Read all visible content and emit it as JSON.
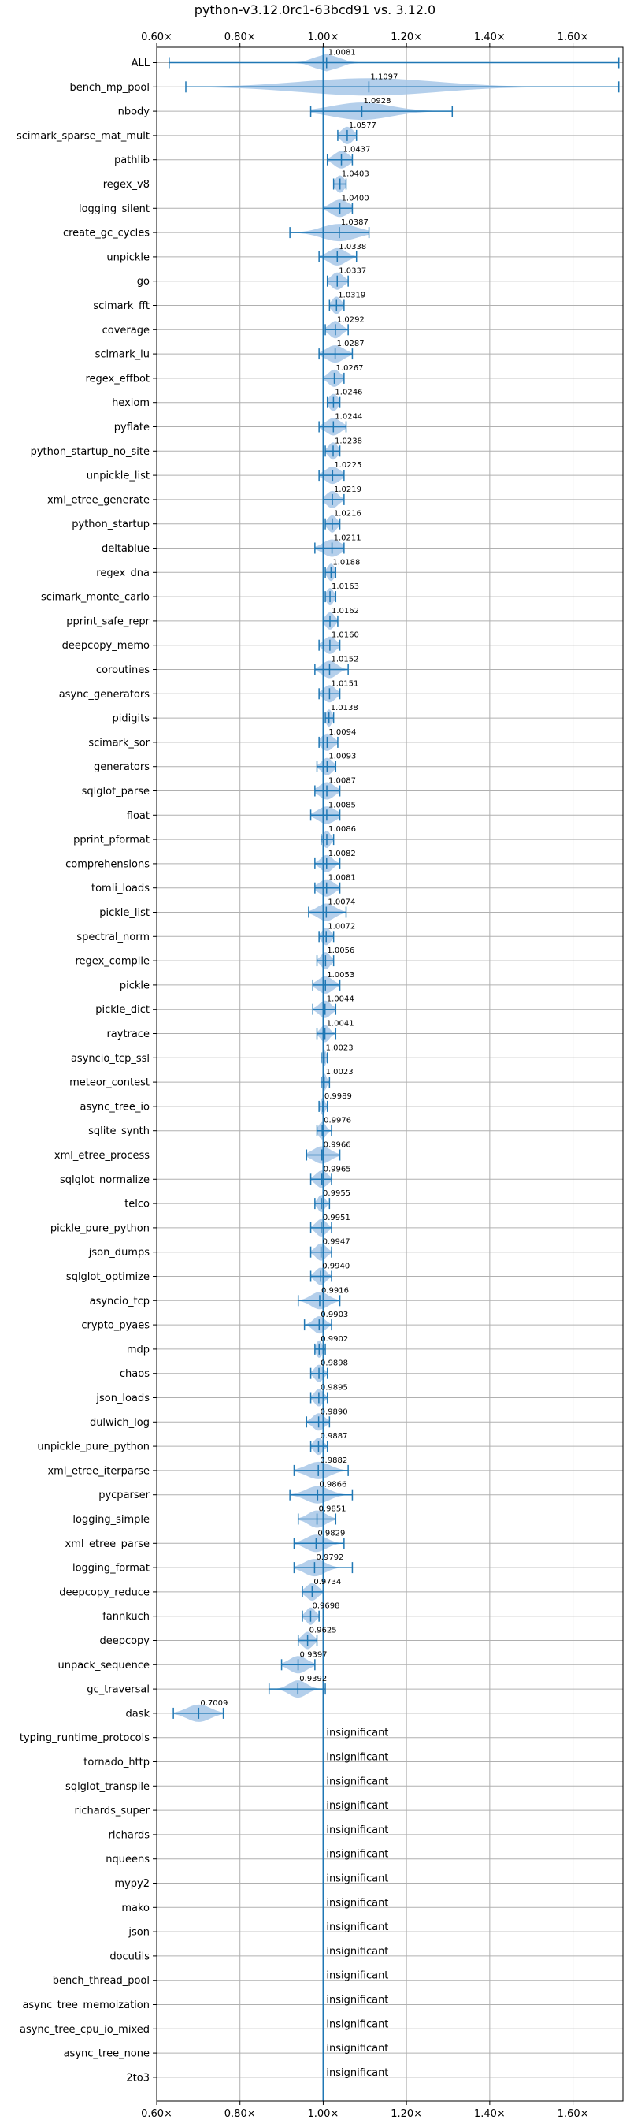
{
  "chart_data": {
    "type": "violin",
    "orientation": "horizontal",
    "title": "python-v3.12.0rc1-63bcd91 vs. 3.12.0",
    "xlim": [
      0.6,
      1.72
    ],
    "x_ticks": [
      0.6,
      0.8,
      1.0,
      1.2,
      1.4,
      1.6
    ],
    "x_tick_labels": [
      "0.60×",
      "0.80×",
      "1.00×",
      "1.20×",
      "1.40×",
      "1.60×"
    ],
    "reference_line": 1.0,
    "grid": true,
    "colors": {
      "violin": "#a7c7e7",
      "line": "#1f77b4",
      "grid": "#b0b0b0"
    },
    "insignificant_label": "insignificant",
    "benchmarks": [
      {
        "name": "ALL",
        "value": 1.0081,
        "label": "1.0081",
        "min": 0.63,
        "max": 1.71,
        "spread": 0.04
      },
      {
        "name": "bench_mp_pool",
        "value": 1.1097,
        "label": "1.1097",
        "min": 0.67,
        "max": 1.71,
        "spread": 0.23
      },
      {
        "name": "nbody",
        "value": 1.0928,
        "label": "1.0928",
        "min": 0.97,
        "max": 1.31,
        "spread": 0.1
      },
      {
        "name": "scimark_sparse_mat_mult",
        "value": 1.0577,
        "label": "1.0577",
        "min": 1.035,
        "max": 1.08,
        "spread": 0.02
      },
      {
        "name": "pathlib",
        "value": 1.0437,
        "label": "1.0437",
        "min": 1.01,
        "max": 1.07,
        "spread": 0.025
      },
      {
        "name": "regex_v8",
        "value": 1.0403,
        "label": "1.0403",
        "min": 1.025,
        "max": 1.055,
        "spread": 0.015
      },
      {
        "name": "logging_silent",
        "value": 1.04,
        "label": "1.0400",
        "min": 1.0,
        "max": 1.07,
        "spread": 0.03
      },
      {
        "name": "create_gc_cycles",
        "value": 1.0387,
        "label": "1.0387",
        "min": 0.92,
        "max": 1.11,
        "spread": 0.06
      },
      {
        "name": "unpickle",
        "value": 1.0338,
        "label": "1.0338",
        "min": 0.99,
        "max": 1.08,
        "spread": 0.03
      },
      {
        "name": "go",
        "value": 1.0337,
        "label": "1.0337",
        "min": 1.01,
        "max": 1.06,
        "spread": 0.02
      },
      {
        "name": "scimark_fft",
        "value": 1.0319,
        "label": "1.0319",
        "min": 1.015,
        "max": 1.05,
        "spread": 0.015
      },
      {
        "name": "coverage",
        "value": 1.0292,
        "label": "1.0292",
        "min": 1.005,
        "max": 1.06,
        "spread": 0.02
      },
      {
        "name": "scimark_lu",
        "value": 1.0287,
        "label": "1.0287",
        "min": 0.99,
        "max": 1.07,
        "spread": 0.03
      },
      {
        "name": "regex_effbot",
        "value": 1.0267,
        "label": "1.0267",
        "min": 1.0,
        "max": 1.05,
        "spread": 0.02
      },
      {
        "name": "hexiom",
        "value": 1.0246,
        "label": "1.0246",
        "min": 1.01,
        "max": 1.04,
        "spread": 0.015
      },
      {
        "name": "pyflate",
        "value": 1.0244,
        "label": "1.0244",
        "min": 0.99,
        "max": 1.055,
        "spread": 0.025
      },
      {
        "name": "python_startup_no_site",
        "value": 1.0238,
        "label": "1.0238",
        "min": 1.005,
        "max": 1.04,
        "spread": 0.015
      },
      {
        "name": "unpickle_list",
        "value": 1.0225,
        "label": "1.0225",
        "min": 0.99,
        "max": 1.05,
        "spread": 0.025
      },
      {
        "name": "xml_etree_generate",
        "value": 1.0219,
        "label": "1.0219",
        "min": 1.0,
        "max": 1.05,
        "spread": 0.02
      },
      {
        "name": "python_startup",
        "value": 1.0216,
        "label": "1.0216",
        "min": 1.005,
        "max": 1.04,
        "spread": 0.015
      },
      {
        "name": "deltablue",
        "value": 1.0211,
        "label": "1.0211",
        "min": 0.98,
        "max": 1.05,
        "spread": 0.03
      },
      {
        "name": "regex_dna",
        "value": 1.0188,
        "label": "1.0188",
        "min": 1.005,
        "max": 1.03,
        "spread": 0.012
      },
      {
        "name": "scimark_monte_carlo",
        "value": 1.0163,
        "label": "1.0163",
        "min": 1.005,
        "max": 1.03,
        "spread": 0.012
      },
      {
        "name": "pprint_safe_repr",
        "value": 1.0162,
        "label": "1.0162",
        "min": 1.0,
        "max": 1.035,
        "spread": 0.015
      },
      {
        "name": "deepcopy_memo",
        "value": 1.016,
        "label": "1.0160",
        "min": 0.99,
        "max": 1.04,
        "spread": 0.02
      },
      {
        "name": "coroutines",
        "value": 1.0152,
        "label": "1.0152",
        "min": 0.98,
        "max": 1.06,
        "spread": 0.025
      },
      {
        "name": "async_generators",
        "value": 1.0151,
        "label": "1.0151",
        "min": 0.99,
        "max": 1.04,
        "spread": 0.02
      },
      {
        "name": "pidigits",
        "value": 1.0138,
        "label": "1.0138",
        "min": 1.005,
        "max": 1.025,
        "spread": 0.01
      },
      {
        "name": "scimark_sor",
        "value": 1.0094,
        "label": "1.0094",
        "min": 0.99,
        "max": 1.035,
        "spread": 0.02
      },
      {
        "name": "generators",
        "value": 1.0093,
        "label": "1.0093",
        "min": 0.985,
        "max": 1.03,
        "spread": 0.018
      },
      {
        "name": "sqlglot_parse",
        "value": 1.0087,
        "label": "1.0087",
        "min": 0.98,
        "max": 1.04,
        "spread": 0.025
      },
      {
        "name": "float",
        "value": 1.0085,
        "label": "1.0085",
        "min": 0.97,
        "max": 1.04,
        "spread": 0.03
      },
      {
        "name": "pprint_pformat",
        "value": 1.0086,
        "label": "1.0086",
        "min": 0.995,
        "max": 1.025,
        "spread": 0.012
      },
      {
        "name": "comprehensions",
        "value": 1.0082,
        "label": "1.0082",
        "min": 0.98,
        "max": 1.04,
        "spread": 0.02
      },
      {
        "name": "tomli_loads",
        "value": 1.0081,
        "label": "1.0081",
        "min": 0.98,
        "max": 1.04,
        "spread": 0.025
      },
      {
        "name": "pickle_list",
        "value": 1.0074,
        "label": "1.0074",
        "min": 0.965,
        "max": 1.055,
        "spread": 0.03
      },
      {
        "name": "spectral_norm",
        "value": 1.0072,
        "label": "1.0072",
        "min": 0.99,
        "max": 1.025,
        "spread": 0.015
      },
      {
        "name": "regex_compile",
        "value": 1.0056,
        "label": "1.0056",
        "min": 0.985,
        "max": 1.025,
        "spread": 0.015
      },
      {
        "name": "pickle",
        "value": 1.0053,
        "label": "1.0053",
        "min": 0.975,
        "max": 1.04,
        "spread": 0.025
      },
      {
        "name": "pickle_dict",
        "value": 1.0044,
        "label": "1.0044",
        "min": 0.975,
        "max": 1.03,
        "spread": 0.02
      },
      {
        "name": "raytrace",
        "value": 1.0041,
        "label": "1.0041",
        "min": 0.985,
        "max": 1.03,
        "spread": 0.015
      },
      {
        "name": "asyncio_tcp_ssl",
        "value": 1.0023,
        "label": "1.0023",
        "min": 0.995,
        "max": 1.01,
        "spread": 0.007
      },
      {
        "name": "meteor_contest",
        "value": 1.0023,
        "label": "1.0023",
        "min": 0.995,
        "max": 1.015,
        "spread": 0.008
      },
      {
        "name": "async_tree_io",
        "value": 0.9989,
        "label": "0.9989",
        "min": 0.99,
        "max": 1.01,
        "spread": 0.008
      },
      {
        "name": "sqlite_synth",
        "value": 0.9976,
        "label": "0.9976",
        "min": 0.985,
        "max": 1.02,
        "spread": 0.012
      },
      {
        "name": "xml_etree_process",
        "value": 0.9966,
        "label": "0.9966",
        "min": 0.96,
        "max": 1.04,
        "spread": 0.03
      },
      {
        "name": "sqlglot_normalize",
        "value": 0.9965,
        "label": "0.9965",
        "min": 0.97,
        "max": 1.02,
        "spread": 0.02
      },
      {
        "name": "telco",
        "value": 0.9955,
        "label": "0.9955",
        "min": 0.98,
        "max": 1.015,
        "spread": 0.012
      },
      {
        "name": "pickle_pure_python",
        "value": 0.9951,
        "label": "0.9951",
        "min": 0.97,
        "max": 1.02,
        "spread": 0.018
      },
      {
        "name": "json_dumps",
        "value": 0.9947,
        "label": "0.9947",
        "min": 0.97,
        "max": 1.02,
        "spread": 0.018
      },
      {
        "name": "sqlglot_optimize",
        "value": 0.994,
        "label": "0.9940",
        "min": 0.97,
        "max": 1.02,
        "spread": 0.018
      },
      {
        "name": "asyncio_tcp",
        "value": 0.9916,
        "label": "0.9916",
        "min": 0.94,
        "max": 1.04,
        "spread": 0.03
      },
      {
        "name": "crypto_pyaes",
        "value": 0.9903,
        "label": "0.9903",
        "min": 0.955,
        "max": 1.02,
        "spread": 0.02
      },
      {
        "name": "mdp",
        "value": 0.9902,
        "label": "0.9902",
        "min": 0.98,
        "max": 1.005,
        "spread": 0.01
      },
      {
        "name": "chaos",
        "value": 0.9898,
        "label": "0.9898",
        "min": 0.97,
        "max": 1.01,
        "spread": 0.015
      },
      {
        "name": "json_loads",
        "value": 0.9895,
        "label": "0.9895",
        "min": 0.97,
        "max": 1.01,
        "spread": 0.015
      },
      {
        "name": "dulwich_log",
        "value": 0.989,
        "label": "0.9890",
        "min": 0.96,
        "max": 1.015,
        "spread": 0.02
      },
      {
        "name": "unpickle_pure_python",
        "value": 0.9887,
        "label": "0.9887",
        "min": 0.97,
        "max": 1.01,
        "spread": 0.015
      },
      {
        "name": "xml_etree_iterparse",
        "value": 0.9882,
        "label": "0.9882",
        "min": 0.93,
        "max": 1.06,
        "spread": 0.04
      },
      {
        "name": "pycparser",
        "value": 0.9866,
        "label": "0.9866",
        "min": 0.92,
        "max": 1.07,
        "spread": 0.04
      },
      {
        "name": "logging_simple",
        "value": 0.9851,
        "label": "0.9851",
        "min": 0.94,
        "max": 1.03,
        "spread": 0.03
      },
      {
        "name": "xml_etree_parse",
        "value": 0.9829,
        "label": "0.9829",
        "min": 0.93,
        "max": 1.05,
        "spread": 0.035
      },
      {
        "name": "logging_format",
        "value": 0.9792,
        "label": "0.9792",
        "min": 0.93,
        "max": 1.07,
        "spread": 0.035
      },
      {
        "name": "deepcopy_reduce",
        "value": 0.9734,
        "label": "0.9734",
        "min": 0.95,
        "max": 1.0,
        "spread": 0.02
      },
      {
        "name": "fannkuch",
        "value": 0.9698,
        "label": "0.9698",
        "min": 0.95,
        "max": 0.99,
        "spread": 0.015
      },
      {
        "name": "deepcopy",
        "value": 0.9625,
        "label": "0.9625",
        "min": 0.94,
        "max": 0.985,
        "spread": 0.018
      },
      {
        "name": "unpack_sequence",
        "value": 0.9397,
        "label": "0.9397",
        "min": 0.9,
        "max": 0.98,
        "spread": 0.03
      },
      {
        "name": "gc_traversal",
        "value": 0.9392,
        "label": "0.9392",
        "min": 0.87,
        "max": 1.005,
        "spread": 0.03
      },
      {
        "name": "dask",
        "value": 0.7009,
        "label": "0.7009",
        "min": 0.64,
        "max": 0.76,
        "spread": 0.04
      },
      {
        "name": "typing_runtime_protocols",
        "insignificant": true
      },
      {
        "name": "tornado_http",
        "insignificant": true
      },
      {
        "name": "sqlglot_transpile",
        "insignificant": true
      },
      {
        "name": "richards_super",
        "insignificant": true
      },
      {
        "name": "richards",
        "insignificant": true
      },
      {
        "name": "nqueens",
        "insignificant": true
      },
      {
        "name": "mypy2",
        "insignificant": true
      },
      {
        "name": "mako",
        "insignificant": true
      },
      {
        "name": "json",
        "insignificant": true
      },
      {
        "name": "docutils",
        "insignificant": true
      },
      {
        "name": "bench_thread_pool",
        "insignificant": true
      },
      {
        "name": "async_tree_memoization",
        "insignificant": true
      },
      {
        "name": "async_tree_cpu_io_mixed",
        "insignificant": true
      },
      {
        "name": "async_tree_none",
        "insignificant": true
      },
      {
        "name": "2to3",
        "insignificant": true
      }
    ]
  }
}
